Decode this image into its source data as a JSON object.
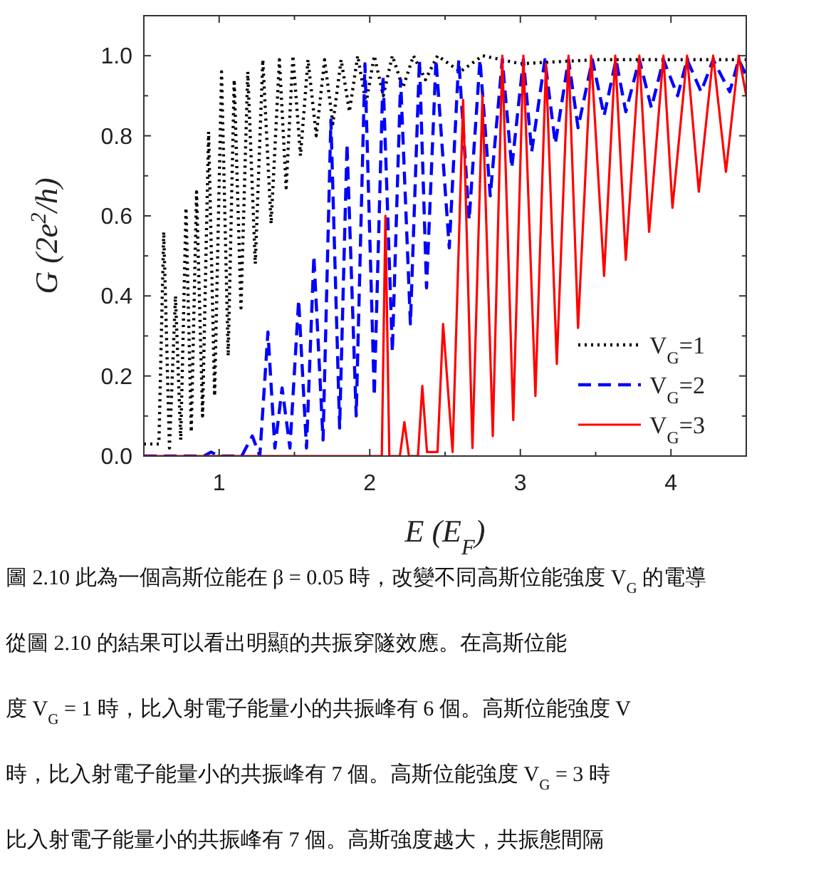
{
  "chart_data": {
    "type": "line",
    "xlabel": "E (E$_{F}$)",
    "ylabel": "G (2e$^{2}$/h)",
    "xlim": [
      0.5,
      4.5
    ],
    "ylim": [
      0,
      1.1
    ],
    "xticks": [
      1,
      {
        "value": 1.5,
        "label": null
      },
      2,
      {
        "value": 2.5,
        "label": null
      },
      3,
      {
        "value": 3.5,
        "label": null
      },
      4
    ],
    "yticks": [
      "0.0",
      {
        "value": 0.1,
        "label": null
      },
      {
        "value": 0.2,
        "label": "0.2"
      },
      {
        "value": 0.3,
        "label": null
      },
      {
        "value": 0.4,
        "label": "0.4"
      },
      {
        "value": 0.5,
        "label": null
      },
      {
        "value": 0.6,
        "label": "0.6"
      },
      {
        "value": 0.7,
        "label": null
      },
      {
        "value": 0.8,
        "label": "0.8"
      },
      {
        "value": 0.9,
        "label": null
      },
      {
        "value": 1.0,
        "label": "1.0"
      }
    ],
    "grid": false,
    "legend": "bottom right",
    "series": [
      {
        "name": "V$_{G}$=1",
        "color": "#000000",
        "line_style": "dotted",
        "x": [
          0.5,
          0.6,
          0.632,
          0.67,
          0.71,
          0.745,
          0.78,
          0.815,
          0.85,
          0.89,
          0.93,
          0.97,
          1.016,
          1.06,
          1.1,
          1.145,
          1.19,
          1.24,
          1.29,
          1.345,
          1.4,
          1.445,
          1.49,
          1.54,
          1.59,
          1.645,
          1.7,
          1.755,
          1.81,
          1.865,
          1.92,
          1.975,
          2.03,
          2.09,
          2.15,
          2.22,
          2.29,
          2.37,
          2.45,
          2.6,
          2.75,
          3.0,
          3.5,
          4.0,
          4.5
        ],
        "values": [
          0.03,
          0.03,
          0.56,
          0.02,
          0.4,
          0.04,
          0.62,
          0.06,
          0.66,
          0.1,
          0.81,
          0.15,
          0.96,
          0.25,
          0.94,
          0.37,
          0.96,
          0.48,
          0.99,
          0.58,
          0.99,
          0.67,
          1.0,
          0.75,
          0.99,
          0.8,
          0.99,
          0.83,
          0.99,
          0.86,
          1.0,
          0.88,
          1.0,
          0.9,
          1.0,
          0.92,
          1.0,
          0.94,
          1.0,
          0.96,
          1.0,
          0.98,
          0.99,
          0.99,
          0.99
        ]
      },
      {
        "name": "V$_{G}$=2",
        "color": "#0000ff",
        "line_style": "dashed",
        "x": [
          0.5,
          0.9,
          0.946,
          1.0,
          1.15,
          1.22,
          1.27,
          1.324,
          1.37,
          1.418,
          1.47,
          1.528,
          1.58,
          1.629,
          1.69,
          1.742,
          1.8,
          1.849,
          1.91,
          1.968,
          2.03,
          2.088,
          2.15,
          2.205,
          2.27,
          2.33,
          2.377,
          2.44,
          2.528,
          2.591,
          2.66,
          2.732,
          2.8,
          2.88,
          2.943,
          3.02,
          3.075,
          3.163,
          3.232,
          3.32,
          3.383,
          3.478,
          3.556,
          3.635,
          3.7,
          3.79,
          3.87,
          3.95,
          4.044,
          4.107,
          4.2,
          4.28,
          4.39,
          4.45,
          4.5
        ],
        "values": [
          0.0,
          0.0,
          0.01,
          0.0,
          0.0,
          0.05,
          0.0,
          0.31,
          0.02,
          0.17,
          0.02,
          0.39,
          0.02,
          0.5,
          0.04,
          0.84,
          0.07,
          0.78,
          0.1,
          0.98,
          0.15,
          0.95,
          0.26,
          0.94,
          0.33,
          0.99,
          0.42,
          0.99,
          0.52,
          0.99,
          0.59,
          0.99,
          0.65,
          0.99,
          0.72,
          0.99,
          0.76,
          0.99,
          0.78,
          0.99,
          0.82,
          0.99,
          0.85,
          0.99,
          0.86,
          0.99,
          0.87,
          0.99,
          0.9,
          0.99,
          0.91,
          0.99,
          0.91,
          0.99,
          0.95
        ]
      },
      {
        "name": "V$_{G}$=3",
        "color": "#ff0000",
        "line_style": "solid",
        "x": [
          0.5,
          2.08,
          2.104,
          2.13,
          2.2,
          2.23,
          2.26,
          2.32,
          2.349,
          2.38,
          2.45,
          2.487,
          2.55,
          2.62,
          2.682,
          2.748,
          2.817,
          2.88,
          2.953,
          3.02,
          3.1,
          3.17,
          3.242,
          3.32,
          3.383,
          3.47,
          3.556,
          3.63,
          3.7,
          3.79,
          3.855,
          3.95,
          4.01,
          4.107,
          4.185,
          4.28,
          4.365,
          4.45,
          4.5
        ],
        "values": [
          0.0,
          0.0,
          0.6,
          0.0,
          0.0,
          0.085,
          0.0,
          0.0,
          0.175,
          0.01,
          0.01,
          0.33,
          0.01,
          0.89,
          0.02,
          0.9,
          0.05,
          1.0,
          0.09,
          1.0,
          0.15,
          0.98,
          0.23,
          1.0,
          0.32,
          1.0,
          0.45,
          1.0,
          0.49,
          1.0,
          0.56,
          1.0,
          0.62,
          1.0,
          0.66,
          1.0,
          0.71,
          1.0,
          0.9
        ]
      }
    ],
    "annotations": [
      "圖 2.10 此為一個高斯位能在 β = 0.05 時，改變不同高斯位能強度 V$_{G}$ 的電導",
      "從圖 2.10 的結果可以看出明顯的共振穿隧效應。在高斯位能",
      "度 V$_{G}$ = 1 時，比入射電子能量小的共振峰有 6 個。高斯位能強度 V",
      "時，比入射電子能量小的共振峰有 7 個。高斯位能強度 V$_{G}$ = 3 時",
      "比入射電子能量小的共振峰有 7 個。高斯強度越大，共振態間隔"
    ]
  }
}
